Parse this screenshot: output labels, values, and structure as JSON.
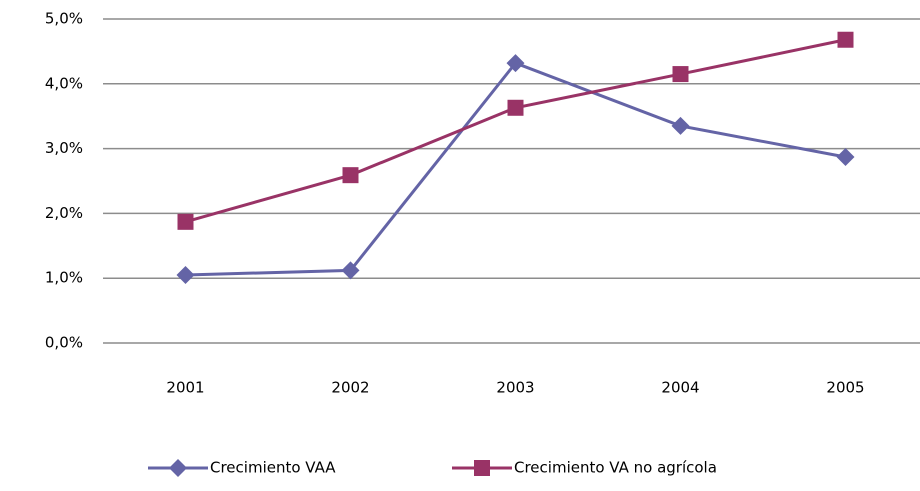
{
  "chart_data": {
    "type": "line",
    "categories": [
      "2001",
      "2002",
      "2003",
      "2004",
      "2005"
    ],
    "series": [
      {
        "name": "Crecimiento VAA",
        "color": "#6464a6",
        "marker": "diamond",
        "values": [
          1.05,
          1.12,
          4.32,
          3.35,
          2.87
        ]
      },
      {
        "name": "Crecimiento VA no agrícola",
        "color": "#993366",
        "marker": "square",
        "values": [
          1.87,
          2.59,
          3.63,
          4.15,
          4.68
        ]
      }
    ],
    "ylim": [
      0,
      5
    ],
    "yticks": [
      {
        "value": 0,
        "label": "0,0%"
      },
      {
        "value": 1,
        "label": "1,0%"
      },
      {
        "value": 2,
        "label": "2,0%"
      },
      {
        "value": 3,
        "label": "3,0%"
      },
      {
        "value": 4,
        "label": "4,0%"
      },
      {
        "value": 5,
        "label": "5,0%"
      }
    ],
    "grid": true,
    "legend": "bottom"
  }
}
